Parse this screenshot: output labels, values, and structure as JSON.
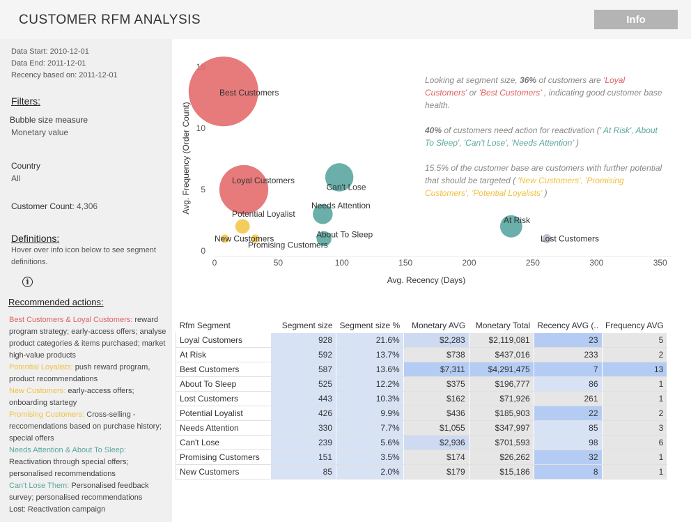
{
  "header": {
    "title": "CUSTOMER RFM ANALYSIS",
    "info_label": "Info"
  },
  "sidebar": {
    "data_start": "Data Start: 2010-12-01",
    "data_end": "Data End: 2011-12-01",
    "recency_based": "Recency based on: 2011-12-01",
    "filters_heading": "Filters:",
    "bubble_label": "Bubble size measure",
    "bubble_value": "Monetary value",
    "country_label": "Country",
    "country_value": "All",
    "customer_count_label": "Customer Count:",
    "customer_count_value": "4,306",
    "definitions_heading": "Definitions:",
    "definitions_line1": "Hover over info icon below to see segment",
    "definitions_line2": "definitions.",
    "info_icon": "i",
    "actions_heading": "Recommended actions:",
    "actions": [
      {
        "label": "Best Customers & Loyal Customers:",
        "text": " reward program strategy; early-access offers; analyse product categories & items purchased; market high-value products",
        "color": "#e06060"
      },
      {
        "label": "Potential Loyalists:",
        "text": " push reward program, product recommendations",
        "color": "#f0c040"
      },
      {
        "label": "New Customers:",
        "text": " early-access offers; onboarding startegy",
        "color": "#f0c040"
      },
      {
        "label": "Promising Customers:",
        "text": " Cross-selling - reccomendations based on purchase history; special offers",
        "color": "#f0c040"
      },
      {
        "label": "Needs Attention & About To Sleep:",
        "text": " Reactivation through special offers; personalised recommendations",
        "color": "#5aa6a0"
      },
      {
        "label": "Can't Lose Them:",
        "text": " Personalised feedback survey; personalised recommendations",
        "color": "#5aa6a0"
      },
      {
        "label": "Lost:",
        "text": " Reactivation campaign",
        "color": "#333333"
      }
    ]
  },
  "commentary": {
    "p1_a": "Looking at segment size, ",
    "p1_b": "36%",
    "p1_c": " of customers are ",
    "p1_d": "'Loyal Customers'",
    "p1_e": " or ",
    "p1_f": "'Best Customers'",
    "p1_g": " , indicating good customer base health.",
    "p2_a": "40%",
    "p2_b": "  of customers need action for reactivation (",
    "p2_c": "' At Risk', About To Sleep', 'Can't Lose', 'Needs Attention'",
    "p2_d": " )",
    "p3_a": "15.5% of the customer base are customers with further potential that should be targeted ( ",
    "p3_b": "'New Customers', 'Promising Customers', 'Potential Loyalists'",
    "p3_c": " )"
  },
  "colors": {
    "best_loyal": "#e46c6c",
    "reactivate": "#5aa6a0",
    "potential": "#f2c84b",
    "lost": "#b8bccb"
  },
  "chart_data": {
    "type": "scatter",
    "xlabel": "Avg. Recency (Days)",
    "ylabel": "Avg. Frequency (Order Count)",
    "xlim": [
      0,
      360
    ],
    "ylim": [
      0,
      15
    ],
    "xticks": [
      0,
      50,
      100,
      150,
      200,
      250,
      300,
      350
    ],
    "yticks": [
      0,
      5,
      10,
      15
    ],
    "size_measure": "Monetary value",
    "points": [
      {
        "name": "Best Customers",
        "x": 7,
        "y": 13,
        "size": 4291475,
        "color": "#e46c6c"
      },
      {
        "name": "Loyal Customers",
        "x": 23,
        "y": 5,
        "size": 2119081,
        "color": "#e46c6c"
      },
      {
        "name": "Can't Lose",
        "x": 98,
        "y": 6,
        "size": 701593,
        "color": "#5aa6a0"
      },
      {
        "name": "Needs Attention",
        "x": 85,
        "y": 3,
        "size": 347997,
        "color": "#5aa6a0"
      },
      {
        "name": "About To Sleep",
        "x": 86,
        "y": 1,
        "size": 196777,
        "color": "#5aa6a0"
      },
      {
        "name": "At Risk",
        "x": 233,
        "y": 2,
        "size": 437016,
        "color": "#5aa6a0"
      },
      {
        "name": "Lost Customers",
        "x": 261,
        "y": 1,
        "size": 71926,
        "color": "#b8bccb"
      },
      {
        "name": "Potential Loyalist",
        "x": 22,
        "y": 2,
        "size": 185903,
        "color": "#f2c84b"
      },
      {
        "name": "New Customers",
        "x": 8,
        "y": 1,
        "size": 15186,
        "color": "#f2c84b"
      },
      {
        "name": "Promising Customers",
        "x": 32,
        "y": 1,
        "size": 26262,
        "color": "#f2c84b"
      }
    ]
  },
  "table": {
    "headers": [
      "Rfm Segment",
      "Segment size",
      "Segment size %",
      "Monetary AVG",
      "Monetary Total",
      "Recency AVG (..",
      "Frequency AVG"
    ],
    "rows": [
      [
        "Loyal Customers",
        "928",
        "21.6%",
        "$2,283",
        "$2,119,081",
        "23",
        "5"
      ],
      [
        "At Risk",
        "592",
        "13.7%",
        "$738",
        "$437,016",
        "233",
        "2"
      ],
      [
        "Best Customers",
        "587",
        "13.6%",
        "$7,311",
        "$4,291,475",
        "7",
        "13"
      ],
      [
        "About To Sleep",
        "525",
        "12.2%",
        "$375",
        "$196,777",
        "86",
        "1"
      ],
      [
        "Lost Customers",
        "443",
        "10.3%",
        "$162",
        "$71,926",
        "261",
        "1"
      ],
      [
        "Potential Loyalist",
        "426",
        "9.9%",
        "$436",
        "$185,903",
        "22",
        "2"
      ],
      [
        "Needs Attention",
        "330",
        "7.7%",
        "$1,055",
        "$347,997",
        "85",
        "3"
      ],
      [
        "Can't Lose",
        "239",
        "5.6%",
        "$2,936",
        "$701,593",
        "98",
        "6"
      ],
      [
        "Promising Customers",
        "151",
        "3.5%",
        "$174",
        "$26,262",
        "32",
        "1"
      ],
      [
        "New Customers",
        "85",
        "2.0%",
        "$179",
        "$15,186",
        "8",
        "1"
      ]
    ]
  }
}
